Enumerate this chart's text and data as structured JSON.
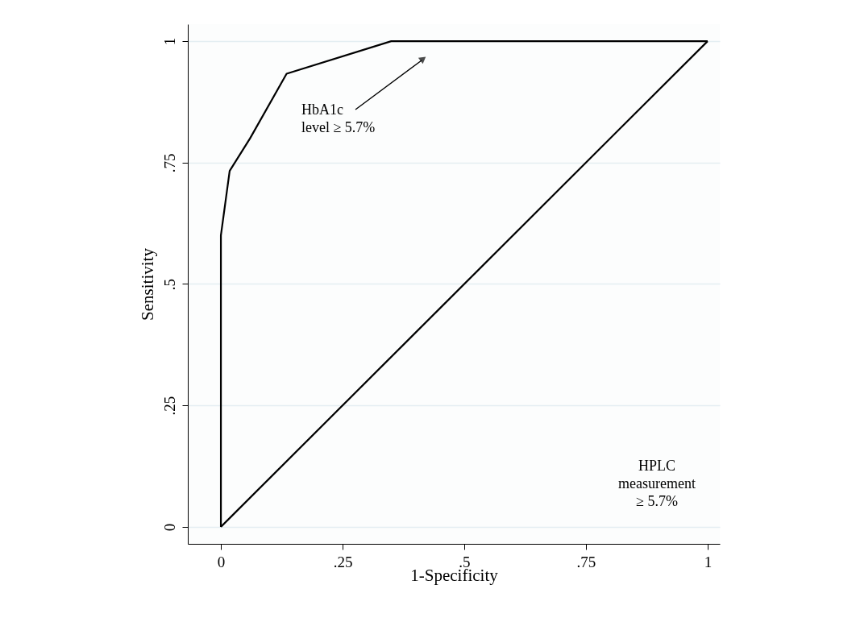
{
  "chart_data": {
    "type": "line",
    "xlabel": "1-Specificity",
    "ylabel": "Sensitivity",
    "series": [
      {
        "color": "#000000",
        "x": [
          0,
          0,
          0.018,
          0.06,
          0.135,
          0.35,
          1
        ],
        "values": [
          0,
          0.6,
          0.733,
          0.8,
          0.933,
          1,
          1
        ]
      },
      {
        "color": "#000000",
        "x": [
          0,
          1
        ],
        "values": [
          0,
          1
        ]
      }
    ],
    "xlim": [
      -0.068,
      1.025
    ],
    "ylim": [
      -0.035,
      1.035
    ],
    "xticks": [
      0,
      {
        "value": 0.25,
        "label": ".25"
      },
      {
        "value": 0.5,
        "label": ".5"
      },
      {
        "value": 0.75,
        "label": ".75"
      },
      1
    ],
    "yticks": [
      0,
      {
        "value": 0.25,
        "label": ".25"
      },
      {
        "value": 0.5,
        "label": ".5"
      },
      {
        "value": 0.75,
        "label": ".75"
      },
      1
    ],
    "grid": "y",
    "marker": "none",
    "line_style": "solid",
    "annotations": [
      "HbA1c\nlevel ≥ 5.7%",
      "HPLC\nmeasurement\n≥ 5.7%"
    ]
  }
}
